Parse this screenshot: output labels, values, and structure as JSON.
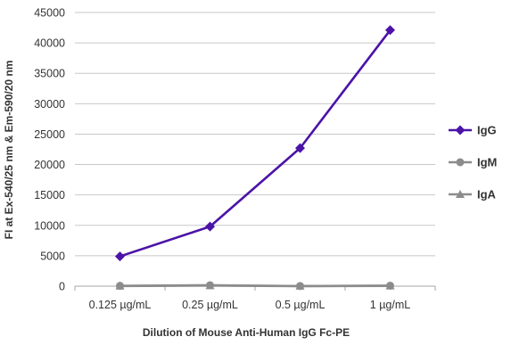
{
  "chart_data": {
    "type": "line",
    "title": "",
    "xlabel": "Dilution of Mouse Anti-Human IgG Fc-PE",
    "ylabel": "FI at Ex-540/25 nm & Em-590/20 nm",
    "categories": [
      "0.125 µg/mL",
      "0.25 µg/mL",
      "0.5 µg/mL",
      "1 µg/mL"
    ],
    "ylim": [
      0,
      45000
    ],
    "yticks": [
      0,
      5000,
      10000,
      15000,
      20000,
      25000,
      30000,
      35000,
      40000,
      45000
    ],
    "grid": "horizontal",
    "legend_position": "right",
    "series": [
      {
        "name": "IgG",
        "values": [
          4900,
          9800,
          22700,
          42100
        ],
        "color": "#4b13a8",
        "marker": "diamond"
      },
      {
        "name": "IgM",
        "values": [
          50,
          150,
          20,
          80
        ],
        "color": "#8c8c8c",
        "marker": "circle"
      },
      {
        "name": "IgA",
        "values": [
          30,
          100,
          10,
          50
        ],
        "color": "#8c8c8c",
        "marker": "triangle"
      }
    ]
  }
}
